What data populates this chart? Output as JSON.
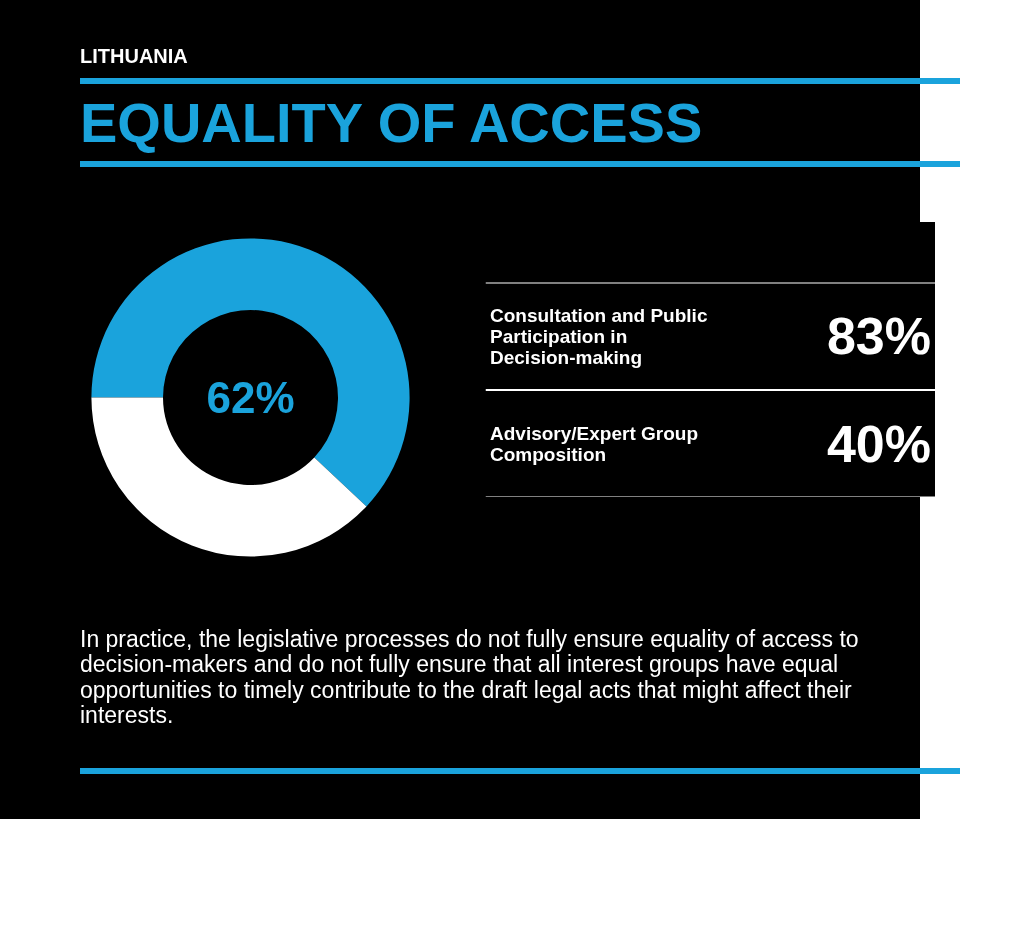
{
  "chart_data": [
    {
      "type": "donut",
      "subtitle": "LITHUANIA",
      "title": "EQUALITY OF ACCESS",
      "categories": [
        null,
        null
      ],
      "values": [
        62,
        38
      ],
      "colors": [
        "#1aa3dc",
        "#ffffff"
      ],
      "annotations": [
        "62%"
      ]
    },
    {
      "type": "other",
      "categories": [
        "Consultation and Public Participation in Decision-making",
        "Advisory/Expert Group Composition"
      ],
      "value_labels": [
        "83%",
        "40%"
      ],
      "annotations": [
        "In practice, the legislative processes do not fully ensure equality of access to decision-makers and do not fully ensure that all interest groups have equal opportunities to timely contribute to the draft legal acts that might affect their interests."
      ]
    }
  ]
}
